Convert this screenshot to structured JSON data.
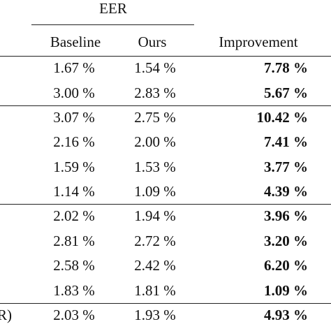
{
  "header": {
    "group": "EER",
    "columns": [
      "Baseline",
      "Ours",
      "Improvement"
    ]
  },
  "table": {
    "groups": [
      {
        "rows": [
          {
            "baseline": "1.67 %",
            "ours": "1.54 %",
            "improvement": "7.78 %"
          },
          {
            "baseline": "3.00 %",
            "ours": "2.83 %",
            "improvement": "5.67 %"
          }
        ]
      },
      {
        "rows": [
          {
            "baseline": "3.07 %",
            "ours": "2.75 %",
            "improvement": "10.42 %"
          },
          {
            "baseline": "2.16 %",
            "ours": "2.00 %",
            "improvement": "7.41 %"
          },
          {
            "baseline": "1.59 %",
            "ours": "1.53 %",
            "improvement": "3.77 %"
          },
          {
            "baseline": "1.14 %",
            "ours": "1.09 %",
            "improvement": "4.39 %"
          }
        ]
      },
      {
        "rows": [
          {
            "baseline": "2.02 %",
            "ours": "1.94 %",
            "improvement": "3.96 %"
          },
          {
            "baseline": "2.81 %",
            "ours": "2.72 %",
            "improvement": "3.20 %"
          },
          {
            "baseline": "2.58 %",
            "ours": "2.42 %",
            "improvement": "6.20 %"
          },
          {
            "baseline": "1.83 %",
            "ours": "1.81 %",
            "improvement": "1.09 %"
          }
        ]
      },
      {
        "rows": [
          {
            "label": "R)",
            "baseline": "2.03 %",
            "ours": "1.93 %",
            "improvement": "4.93 %"
          }
        ]
      }
    ]
  }
}
